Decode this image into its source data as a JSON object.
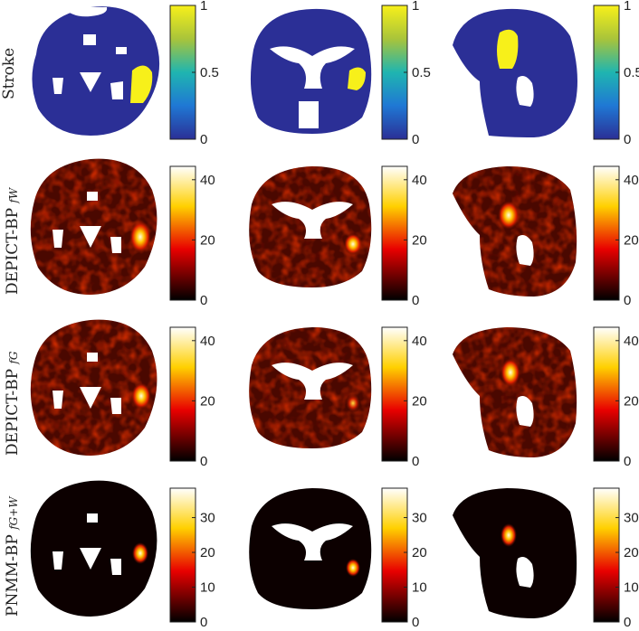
{
  "rows": [
    {
      "label": "Stroke",
      "sub": "",
      "ticks": [
        "1",
        "0.5",
        "0"
      ],
      "colormap": "parula"
    },
    {
      "label": "DEPICT-BP ",
      "sub": "fW",
      "ticks": [
        "40",
        "20",
        "0"
      ],
      "colormap": "hot"
    },
    {
      "label": "DEPICT-BP ",
      "sub": "fG",
      "ticks": [
        "40",
        "20",
        "0"
      ],
      "colormap": "hot"
    },
    {
      "label": "PNMM-BP ",
      "sub": "fG+W",
      "ticks": [
        "30",
        "20",
        "10",
        "0"
      ],
      "colormap": "hot"
    }
  ],
  "colors": {
    "parula_low": "#2b2f96",
    "parula_high": "#f7f01a",
    "hot_background": "#000000",
    "hot_tissue": "#5a0b00",
    "hot_hot": "#ffd000"
  }
}
